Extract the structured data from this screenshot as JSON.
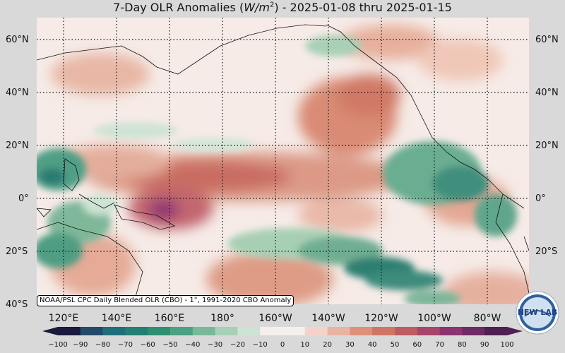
{
  "title": {
    "prefix": "7-Day OLR Anomalies (",
    "unit_main": "W/m",
    "unit_exp": "2",
    "suffix": ") - 2025-01-08 thru 2025-01-15"
  },
  "map": {
    "projection": "equirectangular",
    "lon_range": [
      105,
      290
    ],
    "lat_range": [
      -40,
      68
    ],
    "lat_labels": [
      "60°N",
      "40°N",
      "20°N",
      "0°",
      "20°S",
      "40°S"
    ],
    "lon_labels": [
      "120°E",
      "140°E",
      "160°E",
      "180°",
      "160°W",
      "140°W",
      "120°W",
      "100°W",
      "80°W"
    ],
    "credit": "NOAA/PSL CPC Daily Blended OLR (CBO) - 1°, 1991-2020 CBO Anomaly",
    "logo_text": "NEW LAB"
  },
  "colorbar": {
    "ticks": [
      "−100",
      "−90",
      "−80",
      "−70",
      "−60",
      "−50",
      "−40",
      "−30",
      "−20",
      "−10",
      "0",
      "10",
      "20",
      "30",
      "40",
      "50",
      "60",
      "70",
      "80",
      "90",
      "100"
    ],
    "colors": [
      "#1a1a3e",
      "#234a6b",
      "#1f6f7a",
      "#227f73",
      "#2f8f72",
      "#4aa283",
      "#79b99a",
      "#a7d0b6",
      "#cde3d3",
      "#f3efec",
      "#f3efec",
      "#f3d3c9",
      "#e9b3a2",
      "#dd917b",
      "#cf7566",
      "#be5c62",
      "#a7466a",
      "#8c3470",
      "#6e2a66",
      "#4f1f52"
    ]
  }
}
